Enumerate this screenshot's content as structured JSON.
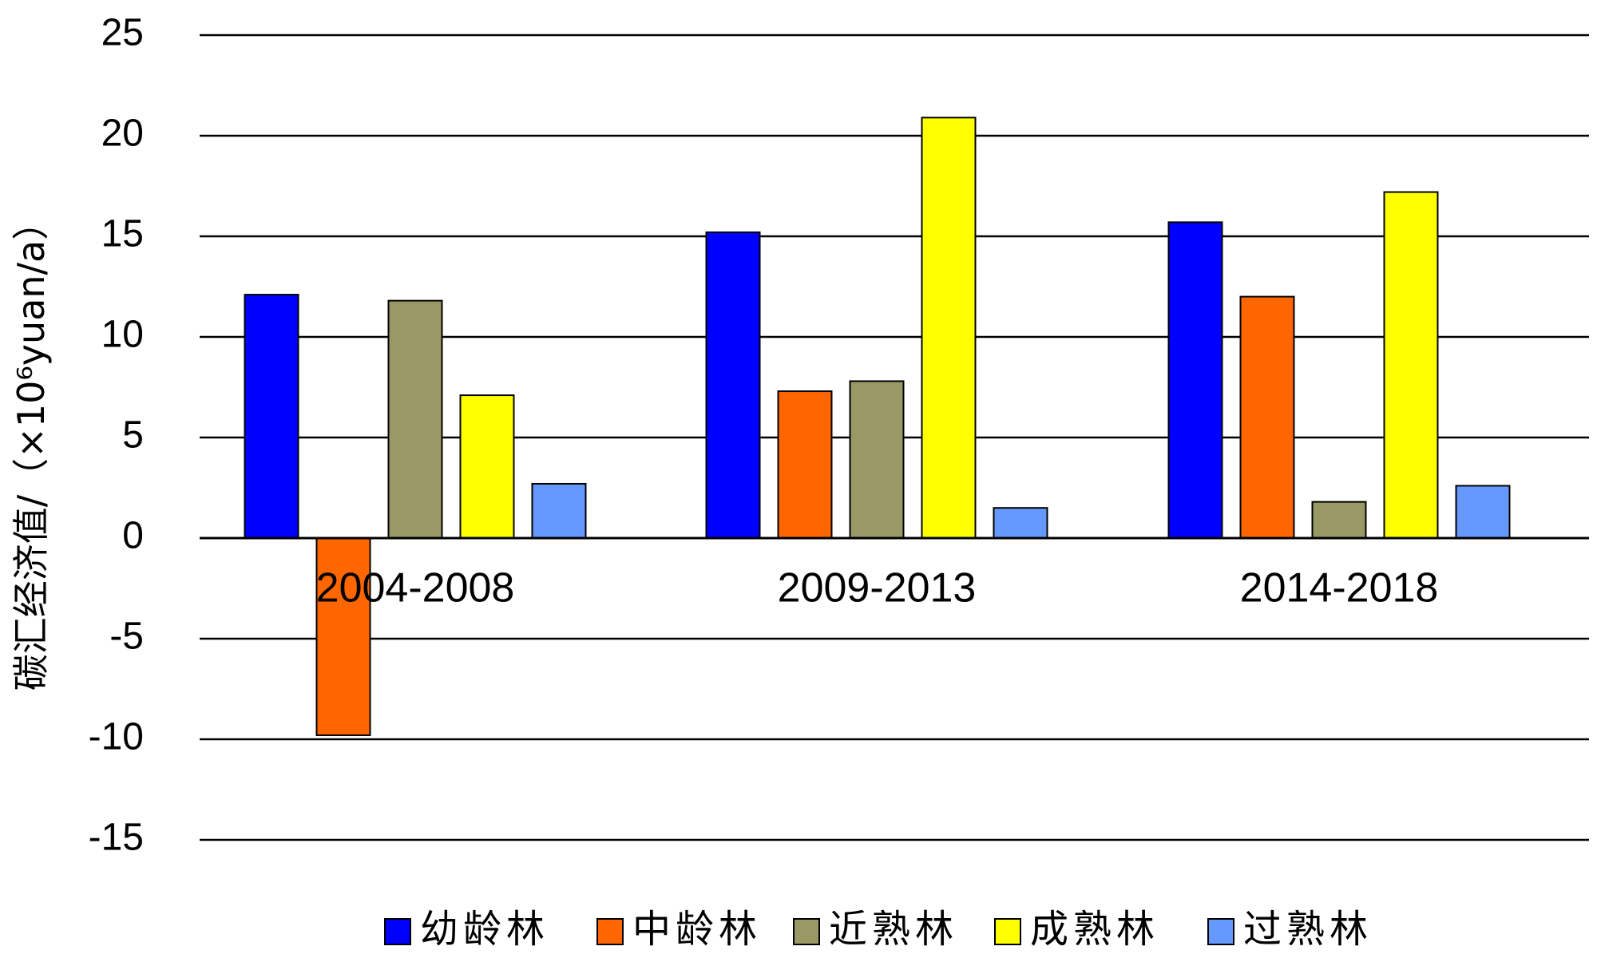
{
  "chart_data": {
    "type": "bar",
    "ylabel": "碳汇经济值/（×10⁶yuan/a）",
    "ylim": [
      -15,
      25
    ],
    "yticks": [
      25,
      20,
      15,
      10,
      5,
      0,
      -5,
      -10,
      -15
    ],
    "ytick_labels": [
      "25",
      "20",
      "15",
      "10",
      "5",
      "0",
      "-5",
      "-10",
      "-15"
    ],
    "categories": [
      "2004-2008",
      "2009-2013",
      "2014-2018"
    ],
    "grid": true,
    "legend_position": "bottom",
    "series": [
      {
        "name": "幼龄林",
        "color": "#0000FF",
        "values": [
          12.1,
          15.2,
          15.7
        ]
      },
      {
        "name": "中龄林",
        "color": "#FF6600",
        "values": [
          -9.8,
          7.3,
          12.0
        ]
      },
      {
        "name": "近熟林",
        "color": "#999966",
        "values": [
          11.8,
          7.8,
          1.8
        ]
      },
      {
        "name": "成熟林",
        "color": "#FFFF00",
        "values": [
          7.1,
          20.9,
          17.2
        ]
      },
      {
        "name": "过熟林",
        "color": "#6699FF",
        "values": [
          2.7,
          1.5,
          2.6
        ]
      }
    ]
  }
}
